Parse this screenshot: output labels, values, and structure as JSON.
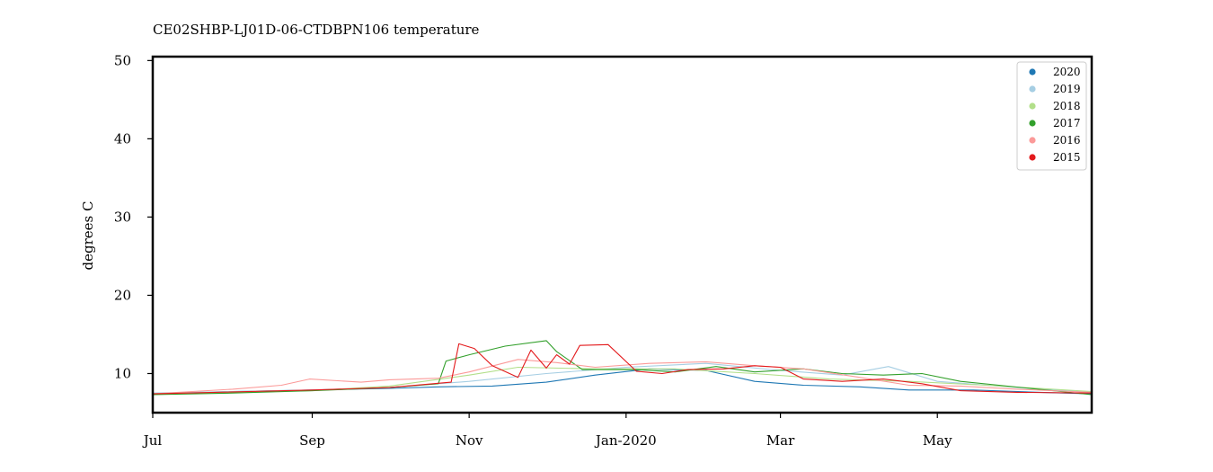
{
  "chart_data": {
    "type": "line",
    "title": "CE02SHBP-LJ01D-06-CTDBPN106 temperature",
    "xlabel": "",
    "ylabel": "degrees C",
    "x_ticks": [
      "Jul",
      "Sep",
      "Nov",
      "Jan-2020",
      "Mar",
      "May"
    ],
    "x_range": [
      "2019-07-01",
      "2020-06-30"
    ],
    "y_ticks": [
      10,
      20,
      30,
      40,
      50
    ],
    "ylim": [
      5,
      50.5
    ],
    "legend_position": "top-right",
    "grid": false,
    "series": [
      {
        "name": "2020",
        "color": "#1f78b4",
        "points": [
          [
            "2019-07-01",
            7.4
          ],
          [
            "2019-08-01",
            7.7
          ],
          [
            "2019-09-01",
            7.9
          ],
          [
            "2019-10-01",
            8.1
          ],
          [
            "2019-10-20",
            8.3
          ],
          [
            "2019-11-10",
            8.4
          ],
          [
            "2019-12-01",
            8.9
          ],
          [
            "2019-12-20",
            9.8
          ],
          [
            "2020-01-10",
            10.6
          ],
          [
            "2020-02-01",
            10.4
          ],
          [
            "2020-02-20",
            9.0
          ],
          [
            "2020-03-10",
            8.5
          ],
          [
            "2020-04-01",
            8.3
          ],
          [
            "2020-04-20",
            7.9
          ],
          [
            "2020-05-15",
            7.9
          ],
          [
            "2020-06-10",
            7.6
          ],
          [
            "2020-06-30",
            7.4
          ]
        ]
      },
      {
        "name": "2019",
        "color": "#a6cee3",
        "points": [
          [
            "2019-07-01",
            7.5
          ],
          [
            "2019-08-01",
            7.7
          ],
          [
            "2019-09-01",
            7.9
          ],
          [
            "2019-10-01",
            8.2
          ],
          [
            "2019-11-01",
            9.0
          ],
          [
            "2019-12-01",
            10.0
          ],
          [
            "2020-01-01",
            10.8
          ],
          [
            "2020-02-01",
            11.3
          ],
          [
            "2020-03-01",
            10.4
          ],
          [
            "2020-03-25",
            9.8
          ],
          [
            "2020-04-12",
            10.9
          ],
          [
            "2020-05-01",
            9.0
          ],
          [
            "2020-06-01",
            8.2
          ],
          [
            "2020-06-30",
            7.6
          ]
        ]
      },
      {
        "name": "2018",
        "color": "#b2df8a",
        "points": [
          [
            "2019-07-01",
            7.4
          ],
          [
            "2019-08-01",
            7.6
          ],
          [
            "2019-09-01",
            7.8
          ],
          [
            "2019-10-01",
            8.4
          ],
          [
            "2019-11-01",
            9.8
          ],
          [
            "2019-11-20",
            10.8
          ],
          [
            "2019-12-20",
            10.6
          ],
          [
            "2020-01-20",
            10.6
          ],
          [
            "2020-02-20",
            10.0
          ],
          [
            "2020-03-20",
            9.3
          ],
          [
            "2020-04-20",
            9.0
          ],
          [
            "2020-05-20",
            8.5
          ],
          [
            "2020-06-30",
            7.7
          ]
        ]
      },
      {
        "name": "2017",
        "color": "#33a02c",
        "points": [
          [
            "2019-07-01",
            7.3
          ],
          [
            "2019-08-01",
            7.5
          ],
          [
            "2019-09-01",
            7.8
          ],
          [
            "2019-10-01",
            8.2
          ],
          [
            "2019-10-20",
            8.7
          ],
          [
            "2019-10-23",
            11.6
          ],
          [
            "2019-11-01",
            12.4
          ],
          [
            "2019-11-15",
            13.5
          ],
          [
            "2019-12-01",
            14.2
          ],
          [
            "2019-12-05",
            12.8
          ],
          [
            "2019-12-15",
            10.5
          ],
          [
            "2020-01-05",
            10.5
          ],
          [
            "2020-01-20",
            10.2
          ],
          [
            "2020-02-05",
            10.9
          ],
          [
            "2020-02-20",
            10.2
          ],
          [
            "2020-03-10",
            10.6
          ],
          [
            "2020-03-25",
            10.0
          ],
          [
            "2020-04-10",
            9.8
          ],
          [
            "2020-04-25",
            10.0
          ],
          [
            "2020-05-10",
            9.0
          ],
          [
            "2020-05-25",
            8.5
          ],
          [
            "2020-06-15",
            7.8
          ],
          [
            "2020-06-30",
            7.3
          ]
        ]
      },
      {
        "name": "2016",
        "color": "#fb9a99",
        "points": [
          [
            "2019-07-01",
            7.4
          ],
          [
            "2019-08-01",
            8.0
          ],
          [
            "2019-08-20",
            8.5
          ],
          [
            "2019-08-31",
            9.3
          ],
          [
            "2019-09-20",
            8.9
          ],
          [
            "2019-10-01",
            9.2
          ],
          [
            "2019-10-20",
            9.4
          ],
          [
            "2019-11-01",
            10.2
          ],
          [
            "2019-11-20",
            11.8
          ],
          [
            "2019-12-05",
            11.4
          ],
          [
            "2019-12-20",
            10.8
          ],
          [
            "2020-01-10",
            11.3
          ],
          [
            "2020-02-01",
            11.5
          ],
          [
            "2020-02-20",
            11.0
          ],
          [
            "2020-03-10",
            10.6
          ],
          [
            "2020-04-01",
            9.5
          ],
          [
            "2020-04-20",
            8.5
          ],
          [
            "2020-05-10",
            8.4
          ],
          [
            "2020-06-01",
            8.0
          ],
          [
            "2020-06-30",
            7.6
          ]
        ]
      },
      {
        "name": "2015",
        "color": "#e31a1c",
        "points": [
          [
            "2019-07-01",
            7.4
          ],
          [
            "2019-09-01",
            7.9
          ],
          [
            "2019-10-01",
            8.2
          ],
          [
            "2019-10-25",
            8.9
          ],
          [
            "2019-10-28",
            13.8
          ],
          [
            "2019-11-03",
            13.2
          ],
          [
            "2019-11-10",
            11.0
          ],
          [
            "2019-11-20",
            9.5
          ],
          [
            "2019-11-25",
            13.0
          ],
          [
            "2019-12-01",
            10.7
          ],
          [
            "2019-12-05",
            12.4
          ],
          [
            "2019-12-10",
            11.2
          ],
          [
            "2019-12-14",
            13.6
          ],
          [
            "2019-12-25",
            13.7
          ],
          [
            "2020-01-05",
            10.3
          ],
          [
            "2020-01-15",
            10.0
          ],
          [
            "2020-01-25",
            10.5
          ],
          [
            "2020-02-08",
            10.6
          ],
          [
            "2020-02-20",
            11.0
          ],
          [
            "2020-03-01",
            10.8
          ],
          [
            "2020-03-10",
            9.3
          ],
          [
            "2020-03-25",
            9.0
          ],
          [
            "2020-04-10",
            9.3
          ],
          [
            "2020-04-25",
            8.7
          ],
          [
            "2020-05-10",
            7.8
          ],
          [
            "2020-06-01",
            7.6
          ],
          [
            "2020-06-30",
            7.5
          ]
        ]
      }
    ],
    "legend": [
      "2020",
      "2019",
      "2018",
      "2017",
      "2016",
      "2015"
    ]
  }
}
